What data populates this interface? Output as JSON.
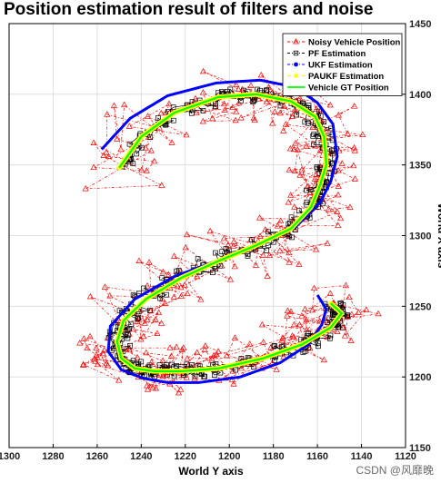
{
  "chart_data": {
    "type": "line",
    "title": "Position estimation result of filters and noise",
    "xlabel": "World Y axis",
    "ylabel": "World X axis",
    "xlim": [
      1300,
      1120
    ],
    "x_reversed": true,
    "ylim": [
      1150,
      1450
    ],
    "y_axis_side": "right",
    "grid": true,
    "legend_position": "top-right",
    "x_ticks": [
      1300,
      1280,
      1260,
      1240,
      1220,
      1200,
      1180,
      1160,
      1140,
      1120
    ],
    "y_ticks": [
      1150,
      1200,
      1250,
      1300,
      1350,
      1400,
      1450
    ],
    "series": [
      {
        "name": "Noisy Vehicle Position",
        "color": "#ff0000",
        "marker": "triangle-open",
        "line": "dash-dot",
        "noise_amplitude": 18,
        "trajectory": "gt"
      },
      {
        "name": "PF Estimation",
        "color": "#000000",
        "marker": "square-open",
        "line": "dash-dot",
        "noise_amplitude": 5,
        "trajectory": "gt"
      },
      {
        "name": "UKF Estimation",
        "color": "#0000ff",
        "marker": "dot",
        "line": "dash-dot",
        "trajectory": "ukf"
      },
      {
        "name": "PAUKF Estimation",
        "color": "#ffff00",
        "marker": "dot",
        "line": "dash-dot",
        "trajectory": "gt"
      },
      {
        "name": "Vehicle GT Position",
        "color": "#00ff00",
        "marker": "none",
        "line": "solid",
        "trajectory": "gt"
      }
    ],
    "trajectories": {
      "gt": {
        "x": [
          1250,
          1240,
          1225,
          1205,
          1188,
          1172,
          1161,
          1157,
          1156,
          1159,
          1163,
          1172,
          1188,
          1205,
          1222,
          1238,
          1248,
          1251,
          1249,
          1243,
          1234,
          1222,
          1205,
          1185,
          1167,
          1154,
          1149,
          1154
        ],
        "y": [
          1348,
          1370,
          1387,
          1398,
          1400,
          1395,
          1384,
          1370,
          1350,
          1335,
          1320,
          1305,
          1293,
          1282,
          1270,
          1255,
          1240,
          1225,
          1213,
          1206,
          1204,
          1204,
          1206,
          1213,
          1223,
          1235,
          1245,
          1252
        ]
      },
      "ukf": {
        "x": [
          1258,
          1245,
          1228,
          1206,
          1186,
          1170,
          1160,
          1153,
          1151,
          1154,
          1159,
          1170,
          1188,
          1206,
          1225,
          1243,
          1254,
          1255,
          1249,
          1239,
          1228,
          1214,
          1195,
          1177,
          1164,
          1158,
          1156,
          1160
        ],
        "y": [
          1361,
          1383,
          1399,
          1408,
          1410,
          1405,
          1394,
          1379,
          1356,
          1338,
          1323,
          1306,
          1293,
          1282,
          1271,
          1255,
          1236,
          1218,
          1205,
          1199,
          1196,
          1196,
          1200,
          1210,
          1223,
          1237,
          1248,
          1258
        ]
      }
    }
  },
  "watermark": "CSDN @风靡晚"
}
